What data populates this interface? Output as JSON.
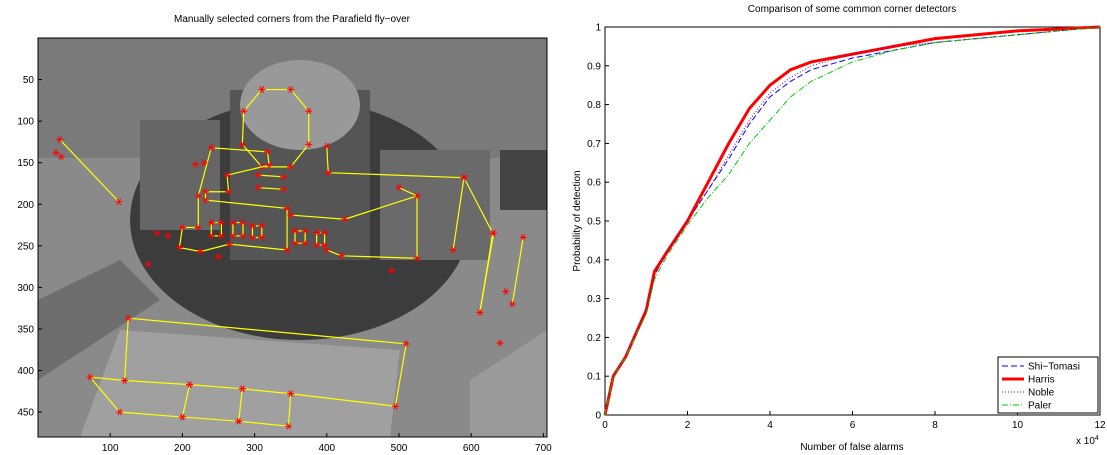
{
  "chart_data": [
    {
      "type": "image",
      "title": "Manually selected corners from the Parafield fly−over",
      "xlim": [
        0,
        705
      ],
      "ylim": [
        0,
        480
      ],
      "xticks": [
        100,
        200,
        300,
        400,
        500,
        600,
        700
      ],
      "yticks": [
        50,
        100,
        150,
        200,
        250,
        300,
        350,
        400,
        450
      ],
      "line_color": "#ffff00",
      "marker_color": "#ff0000",
      "polylines": [
        {
          "x": [
            30,
            112
          ],
          "y": [
            122,
            197
          ]
        },
        {
          "x": [
            310,
            350,
            375,
            375,
            350,
            310,
            283,
            285,
            310
          ],
          "y": [
            62,
            62,
            88,
            128,
            155,
            155,
            128,
            88,
            62
          ]
        },
        {
          "x": [
            120,
            125,
            510,
            495,
            350,
            283,
            210,
            120,
            72,
            113,
            200,
            278,
            347,
            350
          ],
          "y": [
            412,
            337,
            368,
            443,
            428,
            422,
            417,
            412,
            408,
            450,
            456,
            461,
            467,
            428
          ]
        },
        {
          "x": [
            210,
            200
          ],
          "y": [
            417,
            456
          ]
        },
        {
          "x": [
            283,
            278
          ],
          "y": [
            422,
            461
          ]
        },
        {
          "x": [
            631,
            612
          ],
          "y": [
            235,
            330
          ]
        },
        {
          "x": [
            672,
            657
          ],
          "y": [
            240,
            320
          ]
        },
        {
          "x": [
            400,
            402,
            590,
            630,
            612
          ],
          "y": [
            130,
            162,
            168,
            235,
            330
          ]
        },
        {
          "x": [
            590,
            575
          ],
          "y": [
            168,
            255
          ]
        },
        {
          "x": [
            240,
            318,
            320,
            262,
            264,
            232,
            232,
            345,
            345
          ],
          "y": [
            132,
            137,
            153,
            165,
            185,
            185,
            195,
            205,
            255
          ]
        },
        {
          "x": [
            240,
            222,
            222,
            200,
            196,
            225,
            265,
            345
          ],
          "y": [
            132,
            190,
            228,
            228,
            252,
            257,
            248,
            255
          ]
        },
        {
          "x": [
            240,
            254,
            254,
            240,
            240
          ],
          "y": [
            222,
            222,
            238,
            238,
            222
          ]
        },
        {
          "x": [
            270,
            284,
            284,
            270,
            270
          ],
          "y": [
            222,
            222,
            238,
            238,
            222
          ]
        },
        {
          "x": [
            297,
            310,
            310,
            297,
            297
          ],
          "y": [
            226,
            226,
            240,
            240,
            226
          ]
        },
        {
          "x": [
            356,
            370,
            370,
            356,
            356
          ],
          "y": [
            232,
            232,
            247,
            247,
            232
          ]
        },
        {
          "x": [
            386,
            397,
            397,
            386,
            386
          ],
          "y": [
            234,
            234,
            249,
            249,
            234
          ]
        },
        {
          "x": [
            350,
            425,
            525,
            525,
            420,
            400
          ],
          "y": [
            213,
            218,
            190,
            265,
            262,
            255
          ]
        },
        {
          "x": [
            305,
            340
          ],
          "y": [
            165,
            167
          ]
        },
        {
          "x": [
            305,
            340
          ],
          "y": [
            180,
            182
          ]
        },
        {
          "x": [
            500,
            525
          ],
          "y": [
            180,
            190
          ]
        }
      ],
      "points": {
        "x": [
          25,
          32,
          218,
          230,
          152,
          250,
          165,
          180,
          490,
          648,
          640
        ],
        "y": [
          138,
          143,
          152,
          150,
          272,
          263,
          235,
          238,
          280,
          305,
          367
        ]
      }
    },
    {
      "type": "line",
      "title": "Comparison of some common corner detectors",
      "x_label": "Number of false alarms",
      "y_label": "Probability of detection",
      "x_multiplier": {
        "base": "x 10",
        "exponent": "4"
      },
      "xlim": [
        0,
        12
      ],
      "ylim": [
        0,
        1
      ],
      "xticks": [
        0,
        2,
        4,
        6,
        8,
        10,
        12
      ],
      "yticks": [
        0,
        0.1,
        0.2,
        0.3,
        0.4,
        0.5,
        0.6,
        0.7,
        0.8,
        0.9,
        1
      ],
      "legend": "lower right",
      "x": [
        0,
        0.2,
        0.5,
        1,
        1.2,
        1.5,
        2,
        2.5,
        3,
        3.5,
        4,
        4.5,
        5,
        6,
        7,
        8,
        9,
        10,
        12
      ],
      "series": [
        {
          "name": "Shi−Tomasi",
          "color": "#0000ff",
          "style": "dashed",
          "values": [
            0,
            0.1,
            0.15,
            0.27,
            0.36,
            0.42,
            0.5,
            0.58,
            0.66,
            0.75,
            0.82,
            0.86,
            0.89,
            0.92,
            0.94,
            0.96,
            0.97,
            0.98,
            1
          ]
        },
        {
          "name": "Harris",
          "color": "#ff0000",
          "style": "thick",
          "values": [
            0,
            0.1,
            0.15,
            0.27,
            0.37,
            0.42,
            0.5,
            0.6,
            0.7,
            0.79,
            0.85,
            0.89,
            0.91,
            0.93,
            0.95,
            0.97,
            0.98,
            0.99,
            1
          ]
        },
        {
          "name": "Noble",
          "color": "#800080",
          "style": "dotted",
          "values": [
            0,
            0.1,
            0.15,
            0.27,
            0.36,
            0.42,
            0.5,
            0.58,
            0.67,
            0.76,
            0.83,
            0.87,
            0.9,
            0.93,
            0.95,
            0.96,
            0.97,
            0.98,
            1
          ]
        },
        {
          "name": "Paler",
          "color": "#00cc00",
          "style": "dashdot",
          "values": [
            0,
            0.1,
            0.15,
            0.26,
            0.35,
            0.41,
            0.49,
            0.56,
            0.62,
            0.7,
            0.76,
            0.82,
            0.86,
            0.91,
            0.94,
            0.96,
            0.97,
            0.98,
            1
          ]
        }
      ]
    }
  ]
}
